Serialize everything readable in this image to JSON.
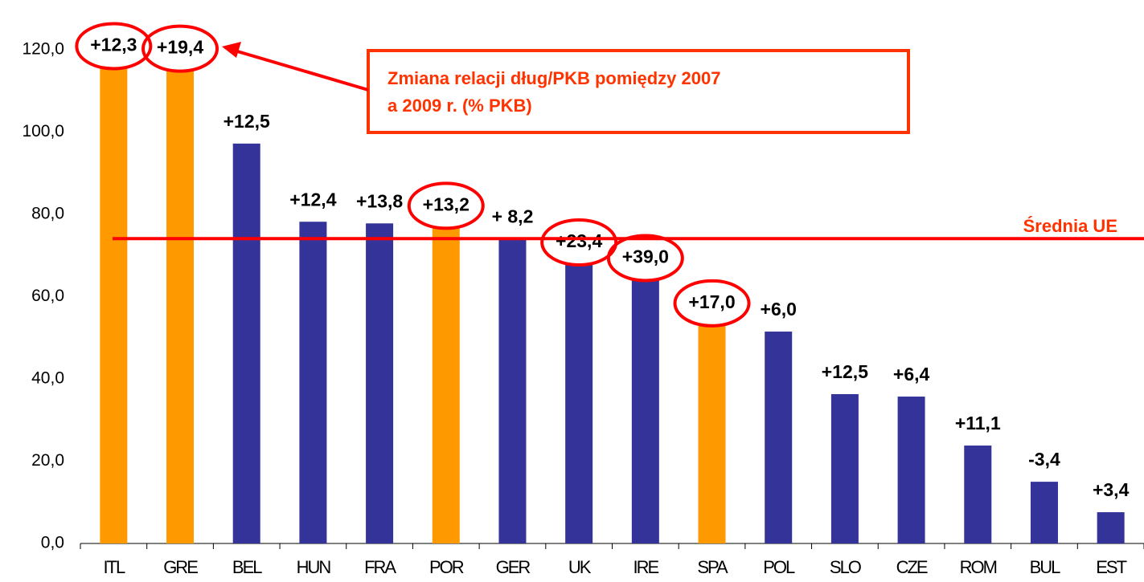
{
  "chart_data": {
    "type": "bar",
    "categories": [
      "ITL",
      "GRE",
      "BEL",
      "HUN",
      "FRA",
      "POR",
      "GER",
      "UK",
      "IRE",
      "SPA",
      "POL",
      "SLO",
      "CZE",
      "ROM",
      "BUL",
      "EST"
    ],
    "values": [
      115.8,
      115.2,
      97.2,
      78.2,
      77.8,
      77.0,
      74.1,
      68.1,
      64.3,
      53.3,
      51.5,
      36.3,
      35.7,
      23.8,
      15.0,
      7.6
    ],
    "colors": [
      "#ff9900",
      "#ff9900",
      "#333399",
      "#333399",
      "#333399",
      "#ff9900",
      "#333399",
      "#333399",
      "#333399",
      "#ff9900",
      "#333399",
      "#333399",
      "#333399",
      "#333399",
      "#333399",
      "#333399"
    ],
    "change_labels": [
      "+12,3",
      "+19,4",
      "+12,5",
      "+12,4",
      "+13,8",
      "+13,2",
      "+ 8,2",
      "+23,4",
      "+39,0",
      "+17,0",
      "+6,0",
      "+12,5",
      "+6,4",
      "+11,1",
      "-3,4",
      "+3,4"
    ],
    "circled": [
      true,
      true,
      false,
      false,
      false,
      true,
      false,
      true,
      true,
      true,
      false,
      false,
      false,
      false,
      false,
      false
    ],
    "circle_color": "#ff0000",
    "ylim": [
      0,
      120
    ],
    "yticks": [
      {
        "value": 0,
        "label": "0,0"
      },
      {
        "value": 20,
        "label": "20,0"
      },
      {
        "value": 40,
        "label": "40,0"
      },
      {
        "value": 60,
        "label": "60,0"
      },
      {
        "value": 80,
        "label": "80,0"
      },
      {
        "value": 100,
        "label": "100,0"
      },
      {
        "value": 120,
        "label": "120,0"
      }
    ],
    "reference_line": {
      "value": 74.1,
      "label": "Średnia UE",
      "color": "#ff0000"
    },
    "callout": [
      "Zmiana relacji dług/PKB pomiędzy 2007",
      "a 2009 r. (% PKB)"
    ]
  }
}
